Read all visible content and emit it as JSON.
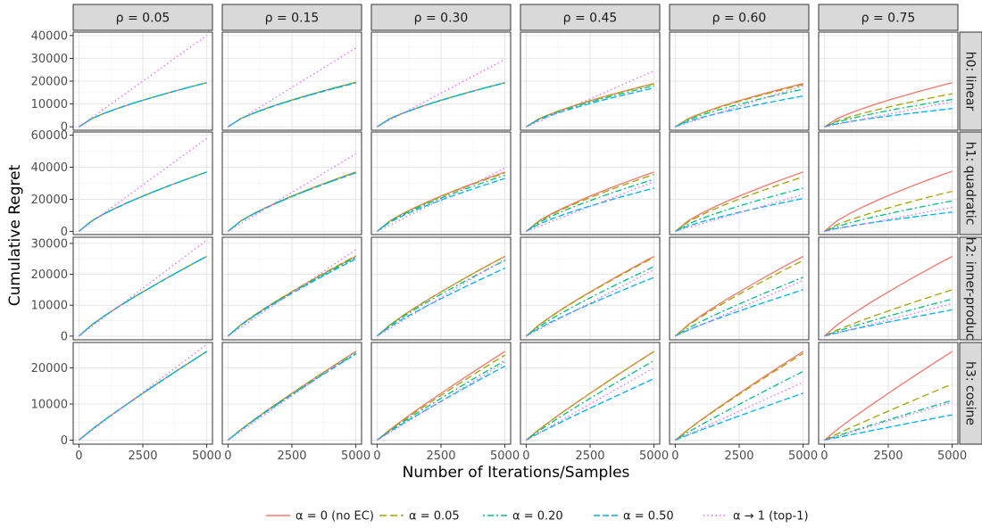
{
  "chart_data": {
    "type": "line",
    "layout": "facet-grid",
    "xlabel": "Number of Iterations/Samples",
    "ylabel": "Cumulative Regret",
    "xlim": [
      0,
      5000
    ],
    "x_ticks": [
      0,
      2500,
      5000
    ],
    "x_tick_labels": [
      "0",
      "2500",
      "5000"
    ],
    "grid": true,
    "legend_position": "bottom",
    "x": [
      0,
      500,
      1000,
      1500,
      2000,
      2500,
      3000,
      3500,
      4000,
      4500,
      5000
    ],
    "columns": [
      {
        "label": "ρ = 0.05"
      },
      {
        "label": "ρ = 0.15"
      },
      {
        "label": "ρ = 0.30"
      },
      {
        "label": "ρ = 0.45"
      },
      {
        "label": "ρ = 0.60"
      },
      {
        "label": "ρ = 0.75"
      }
    ],
    "rows": [
      {
        "label": "h0: linear",
        "ylim": [
          -1500,
          41500
        ],
        "y_ticks": [
          0,
          10000,
          20000,
          30000,
          40000
        ],
        "y_tick_labels": [
          "0",
          "10000",
          "20000",
          "30000",
          "40000"
        ]
      },
      {
        "label": "h1: quadratic",
        "ylim": [
          -2000,
          62000
        ],
        "y_ticks": [
          0,
          20000,
          40000,
          60000
        ],
        "y_tick_labels": [
          "0",
          "20000",
          "40000",
          "60000"
        ]
      },
      {
        "label": "h2: inner-produc",
        "ylim": [
          -1200,
          32000
        ],
        "y_ticks": [
          0,
          10000,
          20000,
          30000
        ],
        "y_tick_labels": [
          "0",
          "10000",
          "20000",
          "30000"
        ]
      },
      {
        "label": "h3: cosine",
        "ylim": [
          -1100,
          27000
        ],
        "y_ticks": [
          0,
          10000,
          20000
        ],
        "y_tick_labels": [
          "0",
          "10000",
          "20000"
        ]
      }
    ],
    "series": [
      {
        "key": "a0",
        "name": "α = 0 (no EC)",
        "color": "#F8766D",
        "dash": "solid"
      },
      {
        "key": "a005",
        "name": "α = 0.05",
        "color": "#A3A500",
        "dash": "dashed"
      },
      {
        "key": "a020",
        "name": "α = 0.20",
        "color": "#00BF7D",
        "dash": "dotdash"
      },
      {
        "key": "a050",
        "name": "α = 0.50",
        "color": "#00B0F6",
        "dash": "longdash"
      },
      {
        "key": "a1",
        "name": "α → 1 (top-1)",
        "color": "#E76BF3",
        "dash": "dotted"
      }
    ],
    "panels": [
      {
        "row": 0,
        "col": 0,
        "end": {
          "a0": 19300,
          "a005": 19300,
          "a020": 19300,
          "a050": 19300,
          "a1": 40000
        }
      },
      {
        "row": 0,
        "col": 1,
        "end": {
          "a0": 19500,
          "a005": 19500,
          "a020": 19400,
          "a050": 19200,
          "a1": 34500
        }
      },
      {
        "row": 0,
        "col": 2,
        "end": {
          "a0": 19300,
          "a005": 19300,
          "a020": 19300,
          "a050": 19200,
          "a1": 29500
        }
      },
      {
        "row": 0,
        "col": 3,
        "end": {
          "a0": 19000,
          "a005": 18800,
          "a020": 18000,
          "a050": 17000,
          "a1": 24500
        }
      },
      {
        "row": 0,
        "col": 4,
        "end": {
          "a0": 19000,
          "a005": 18500,
          "a020": 16500,
          "a050": 13500,
          "a1": 18000
        }
      },
      {
        "row": 0,
        "col": 5,
        "end": {
          "a0": 19300,
          "a005": 14500,
          "a020": 12000,
          "a050": 8000,
          "a1": 11000
        }
      },
      {
        "row": 1,
        "col": 0,
        "end": {
          "a0": 37000,
          "a005": 37000,
          "a020": 37000,
          "a050": 37000,
          "a1": 58000
        }
      },
      {
        "row": 1,
        "col": 1,
        "end": {
          "a0": 37000,
          "a005": 37000,
          "a020": 36500,
          "a050": 36500,
          "a1": 48500
        }
      },
      {
        "row": 1,
        "col": 2,
        "end": {
          "a0": 37000,
          "a005": 36500,
          "a020": 35000,
          "a050": 33000,
          "a1": 39500
        }
      },
      {
        "row": 1,
        "col": 3,
        "end": {
          "a0": 37000,
          "a005": 35500,
          "a020": 32500,
          "a050": 27000,
          "a1": 31000
        }
      },
      {
        "row": 1,
        "col": 4,
        "end": {
          "a0": 37000,
          "a005": 34000,
          "a020": 27000,
          "a050": 20500,
          "a1": 23000
        }
      },
      {
        "row": 1,
        "col": 5,
        "end": {
          "a0": 37500,
          "a005": 25000,
          "a020": 19000,
          "a050": 12000,
          "a1": 15000
        }
      },
      {
        "row": 2,
        "col": 0,
        "end": {
          "a0": 25800,
          "a005": 25800,
          "a020": 25800,
          "a050": 25800,
          "a1": 31000
        }
      },
      {
        "row": 2,
        "col": 1,
        "end": {
          "a0": 25800,
          "a005": 26000,
          "a020": 25500,
          "a050": 25000,
          "a1": 28000
        }
      },
      {
        "row": 2,
        "col": 2,
        "end": {
          "a0": 25800,
          "a005": 25800,
          "a020": 24500,
          "a050": 22000,
          "a1": 25000
        }
      },
      {
        "row": 2,
        "col": 3,
        "end": {
          "a0": 25800,
          "a005": 25500,
          "a020": 22500,
          "a050": 19000,
          "a1": 21500
        }
      },
      {
        "row": 2,
        "col": 4,
        "end": {
          "a0": 25800,
          "a005": 24500,
          "a020": 19000,
          "a050": 15000,
          "a1": 18000
        }
      },
      {
        "row": 2,
        "col": 5,
        "end": {
          "a0": 25800,
          "a005": 15000,
          "a020": 12000,
          "a050": 8500,
          "a1": 10500
        }
      },
      {
        "row": 3,
        "col": 0,
        "end": {
          "a0": 24500,
          "a005": 24500,
          "a020": 24500,
          "a050": 24500,
          "a1": 26500
        }
      },
      {
        "row": 3,
        "col": 1,
        "end": {
          "a0": 24500,
          "a005": 24500,
          "a020": 24000,
          "a050": 23800,
          "a1": 24500
        }
      },
      {
        "row": 3,
        "col": 2,
        "end": {
          "a0": 24500,
          "a005": 23500,
          "a020": 22000,
          "a050": 20500,
          "a1": 21500
        }
      },
      {
        "row": 3,
        "col": 3,
        "end": {
          "a0": 24500,
          "a005": 24500,
          "a020": 22000,
          "a050": 17000,
          "a1": 20000
        }
      },
      {
        "row": 3,
        "col": 4,
        "end": {
          "a0": 24500,
          "a005": 24000,
          "a020": 19000,
          "a050": 13000,
          "a1": 16000
        }
      },
      {
        "row": 3,
        "col": 5,
        "end": {
          "a0": 24500,
          "a005": 15500,
          "a020": 11000,
          "a050": 7000,
          "a1": 10500
        }
      }
    ]
  }
}
